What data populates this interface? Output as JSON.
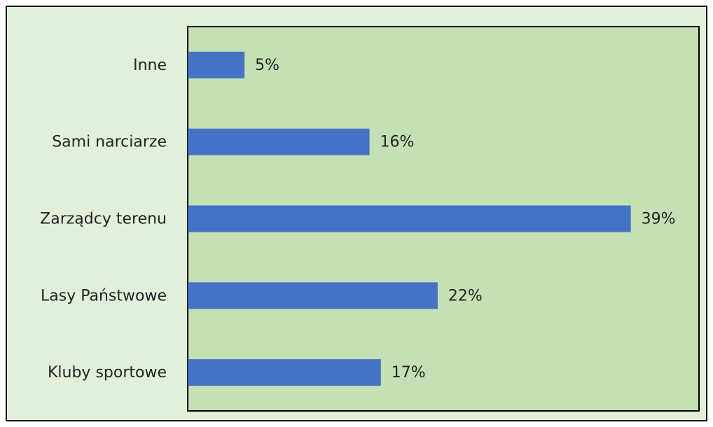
{
  "chart_data": {
    "type": "bar",
    "orientation": "horizontal",
    "categories": [
      "Inne",
      "Sami narciarze",
      "Zarządcy terenu",
      "Lasy Państwowe",
      "Kluby sportowe"
    ],
    "values": [
      5,
      16,
      39,
      22,
      17
    ],
    "value_labels": [
      "5%",
      "16%",
      "39%",
      "22%",
      "17%"
    ],
    "color": "#4472c4",
    "xlim": [
      0,
      45
    ]
  }
}
